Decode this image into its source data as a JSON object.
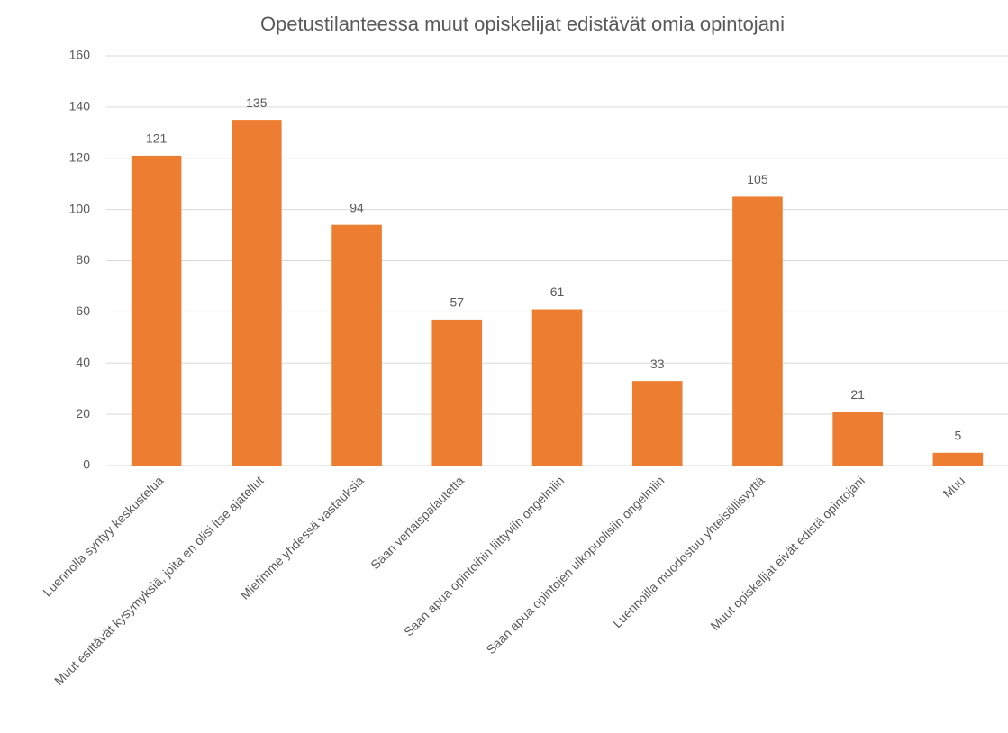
{
  "chart_data": {
    "type": "bar",
    "title": "Opetustilanteessa muut opiskelijat edistävät omia opintojani",
    "categories": [
      "Luennolla syntyy keskustelua",
      "Muut esittävät kysymyksiä, joita en olisi itse ajatellut",
      "Mietimme yhdessä vastauksia",
      "Saan vertaispalautetta",
      "Saan apua opintoihin liittyviin ongelmiin",
      "Saan apua opintojen ulkopuolisiin ongelmiin",
      "Luennoilla muodostuu yhteisöllisyyttä",
      "Muut opiskelijat eivät edistä opintojani",
      "Muu"
    ],
    "values": [
      121,
      135,
      94,
      57,
      61,
      33,
      105,
      21,
      5
    ],
    "color": "#ed7d31",
    "ylim": [
      0,
      160
    ],
    "yticks": [
      0,
      20,
      40,
      60,
      80,
      100,
      120,
      140,
      160
    ],
    "grid": true
  }
}
